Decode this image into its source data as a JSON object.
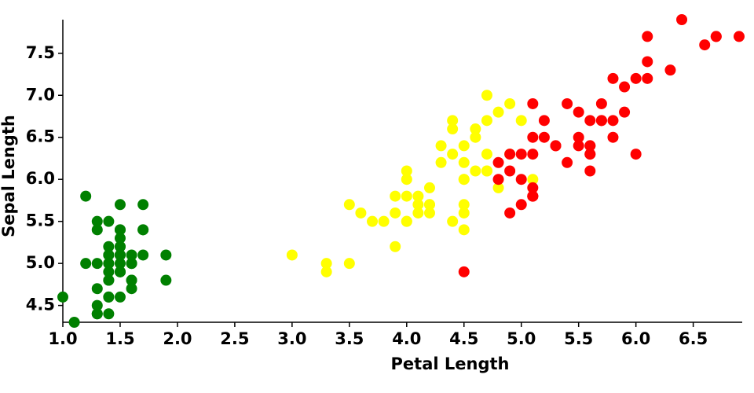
{
  "chart_data": {
    "type": "scatter",
    "x_label": "Petal Length",
    "y_label": "Sepal Length",
    "xlim": [
      1.0,
      6.9
    ],
    "ylim": [
      4.3,
      7.9
    ],
    "xticks": [
      {
        "value": 1,
        "label": "1.0"
      },
      1.5,
      {
        "value": 2,
        "label": "2.0"
      },
      2.5,
      {
        "value": 3,
        "label": "3.0"
      },
      3.5,
      {
        "value": 4,
        "label": "4.0"
      },
      4.5,
      {
        "value": 5,
        "label": "5.0"
      },
      5.5,
      {
        "value": 6,
        "label": "6.0"
      },
      6.5
    ],
    "yticks": [
      4.5,
      {
        "value": 5,
        "label": "5.0"
      },
      5.5,
      {
        "value": 6,
        "label": "6.0"
      },
      6.5,
      {
        "value": 7,
        "label": "7.0"
      },
      7.5
    ],
    "series": [
      {
        "color": "#008000",
        "x": [
          1.4,
          1.4,
          1.3,
          1.5,
          1.4,
          1.7,
          1.4,
          1.5,
          1.4,
          1.5,
          1.5,
          1.6,
          1.4,
          1.1,
          1.2,
          1.5,
          1.3,
          1.4,
          1.7,
          1.5,
          1.7,
          1.5,
          1.0,
          1.7,
          1.9,
          1.6,
          1.6,
          1.5,
          1.4,
          1.6,
          1.6,
          1.5,
          1.5,
          1.4,
          1.5,
          1.2,
          1.3,
          1.5,
          1.3,
          1.5,
          1.3,
          1.3,
          1.3,
          1.6,
          1.9,
          1.4,
          1.6,
          1.4,
          1.5,
          1.4
        ],
        "values": [
          5.1,
          4.9,
          4.7,
          4.6,
          5.0,
          5.4,
          4.6,
          5.0,
          4.4,
          4.9,
          5.4,
          4.8,
          4.8,
          4.3,
          5.8,
          5.7,
          5.4,
          5.1,
          5.7,
          5.1,
          5.4,
          5.1,
          4.6,
          5.1,
          4.8,
          5.0,
          5.0,
          5.2,
          5.2,
          4.7,
          4.8,
          5.4,
          5.2,
          5.5,
          4.9,
          5.0,
          5.5,
          4.9,
          4.4,
          5.1,
          5.0,
          4.5,
          4.4,
          5.0,
          5.1,
          4.8,
          5.1,
          4.6,
          5.3,
          5.0
        ]
      },
      {
        "color": "#ffff00",
        "x": [
          4.7,
          4.5,
          4.9,
          4.0,
          4.6,
          4.5,
          4.7,
          3.3,
          4.6,
          3.9,
          3.5,
          4.2,
          4.0,
          4.7,
          3.6,
          4.4,
          4.5,
          4.1,
          4.5,
          3.9,
          4.8,
          4.0,
          4.9,
          4.7,
          4.3,
          4.4,
          4.8,
          5.0,
          4.5,
          3.5,
          3.8,
          3.7,
          3.9,
          5.1,
          4.5,
          4.5,
          4.7,
          4.4,
          4.1,
          4.0,
          4.4,
          4.6,
          4.0,
          3.3,
          4.2,
          4.2,
          4.2,
          4.3,
          3.0,
          4.1
        ],
        "values": [
          7.0,
          6.4,
          6.9,
          5.5,
          6.5,
          5.7,
          6.3,
          4.9,
          6.6,
          5.2,
          5.0,
          5.9,
          6.0,
          6.1,
          5.6,
          6.7,
          5.6,
          5.8,
          6.2,
          5.6,
          5.9,
          6.1,
          6.3,
          6.1,
          6.4,
          6.6,
          6.8,
          6.7,
          6.0,
          5.7,
          5.5,
          5.5,
          5.8,
          6.0,
          5.4,
          6.0,
          6.7,
          6.3,
          5.6,
          5.5,
          5.5,
          6.1,
          5.8,
          5.0,
          5.6,
          5.7,
          5.7,
          6.2,
          5.1,
          5.7
        ]
      },
      {
        "color": "#ff0000",
        "x": [
          6.0,
          5.1,
          5.9,
          5.6,
          5.8,
          6.6,
          4.5,
          6.3,
          5.8,
          6.1,
          5.1,
          5.3,
          5.5,
          5.0,
          5.1,
          5.3,
          5.5,
          6.7,
          6.9,
          5.0,
          5.7,
          4.9,
          6.7,
          4.9,
          5.7,
          6.0,
          4.8,
          4.9,
          5.6,
          5.8,
          6.1,
          6.4,
          5.6,
          5.1,
          5.6,
          6.1,
          5.6,
          5.5,
          4.8,
          5.4,
          5.6,
          5.1,
          5.1,
          5.9,
          5.7,
          5.2,
          5.0,
          5.2,
          5.4,
          5.1
        ],
        "values": [
          6.3,
          5.8,
          7.1,
          6.3,
          6.5,
          7.6,
          4.9,
          7.3,
          6.7,
          7.2,
          6.5,
          6.4,
          6.8,
          5.7,
          5.8,
          6.4,
          6.5,
          7.7,
          7.7,
          6.0,
          6.9,
          5.6,
          7.7,
          6.3,
          6.7,
          7.2,
          6.2,
          6.1,
          6.4,
          7.2,
          7.4,
          7.9,
          6.4,
          6.3,
          6.1,
          7.7,
          6.3,
          6.4,
          6.0,
          6.9,
          6.7,
          6.9,
          5.8,
          6.8,
          6.7,
          6.7,
          6.3,
          6.5,
          6.2,
          5.9
        ]
      }
    ]
  }
}
